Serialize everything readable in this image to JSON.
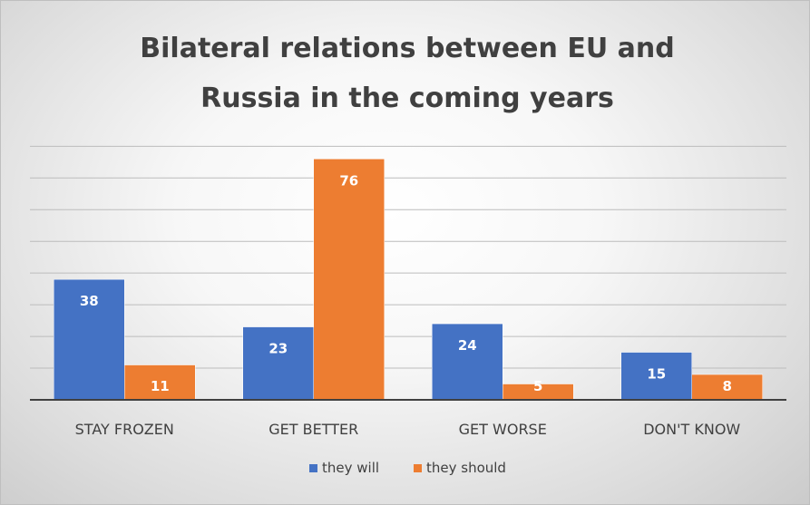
{
  "chart_data": {
    "type": "bar",
    "title": [
      "Bilateral relations between EU and",
      "Russia in the coming years"
    ],
    "categories": [
      "STAY FROZEN",
      "GET BETTER",
      "GET WORSE",
      "DON'T KNOW"
    ],
    "series": [
      {
        "name": "they will",
        "values": [
          38,
          23,
          24,
          15
        ],
        "color": "#4472c4"
      },
      {
        "name": "they should",
        "values": [
          11,
          76,
          5,
          8
        ],
        "color": "#ed7d31"
      }
    ],
    "ylim": [
      0,
      80
    ],
    "grid": true,
    "legend_position": "bottom",
    "data_labels": true
  }
}
